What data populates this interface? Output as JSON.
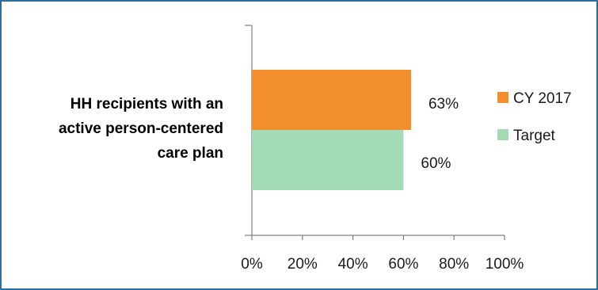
{
  "chart_data": {
    "type": "bar",
    "orientation": "horizontal",
    "categories": [
      "HH recipients with an active person-centered care plan"
    ],
    "category_label_lines": [
      "HH recipients with an",
      "active person-centered",
      "care plan"
    ],
    "series": [
      {
        "name": "CY 2017",
        "values": [
          0.63
        ],
        "color": "#f28e2b",
        "data_label": "63%"
      },
      {
        "name": "Target",
        "values": [
          0.6
        ],
        "color": "#a3dbb5",
        "data_label": "60%"
      }
    ],
    "xlim": [
      0,
      1
    ],
    "x_ticks": [
      {
        "value": 0,
        "label": "0%"
      },
      {
        "value": 0.2,
        "label": "20%"
      },
      {
        "value": 0.4,
        "label": "40%"
      },
      {
        "value": 0.6,
        "label": "60%"
      },
      {
        "value": 0.8,
        "label": "80%"
      },
      {
        "value": 1.0,
        "label": "100%"
      }
    ],
    "grid": false,
    "legend_position": "right",
    "border_color": "#2e6f9e"
  }
}
